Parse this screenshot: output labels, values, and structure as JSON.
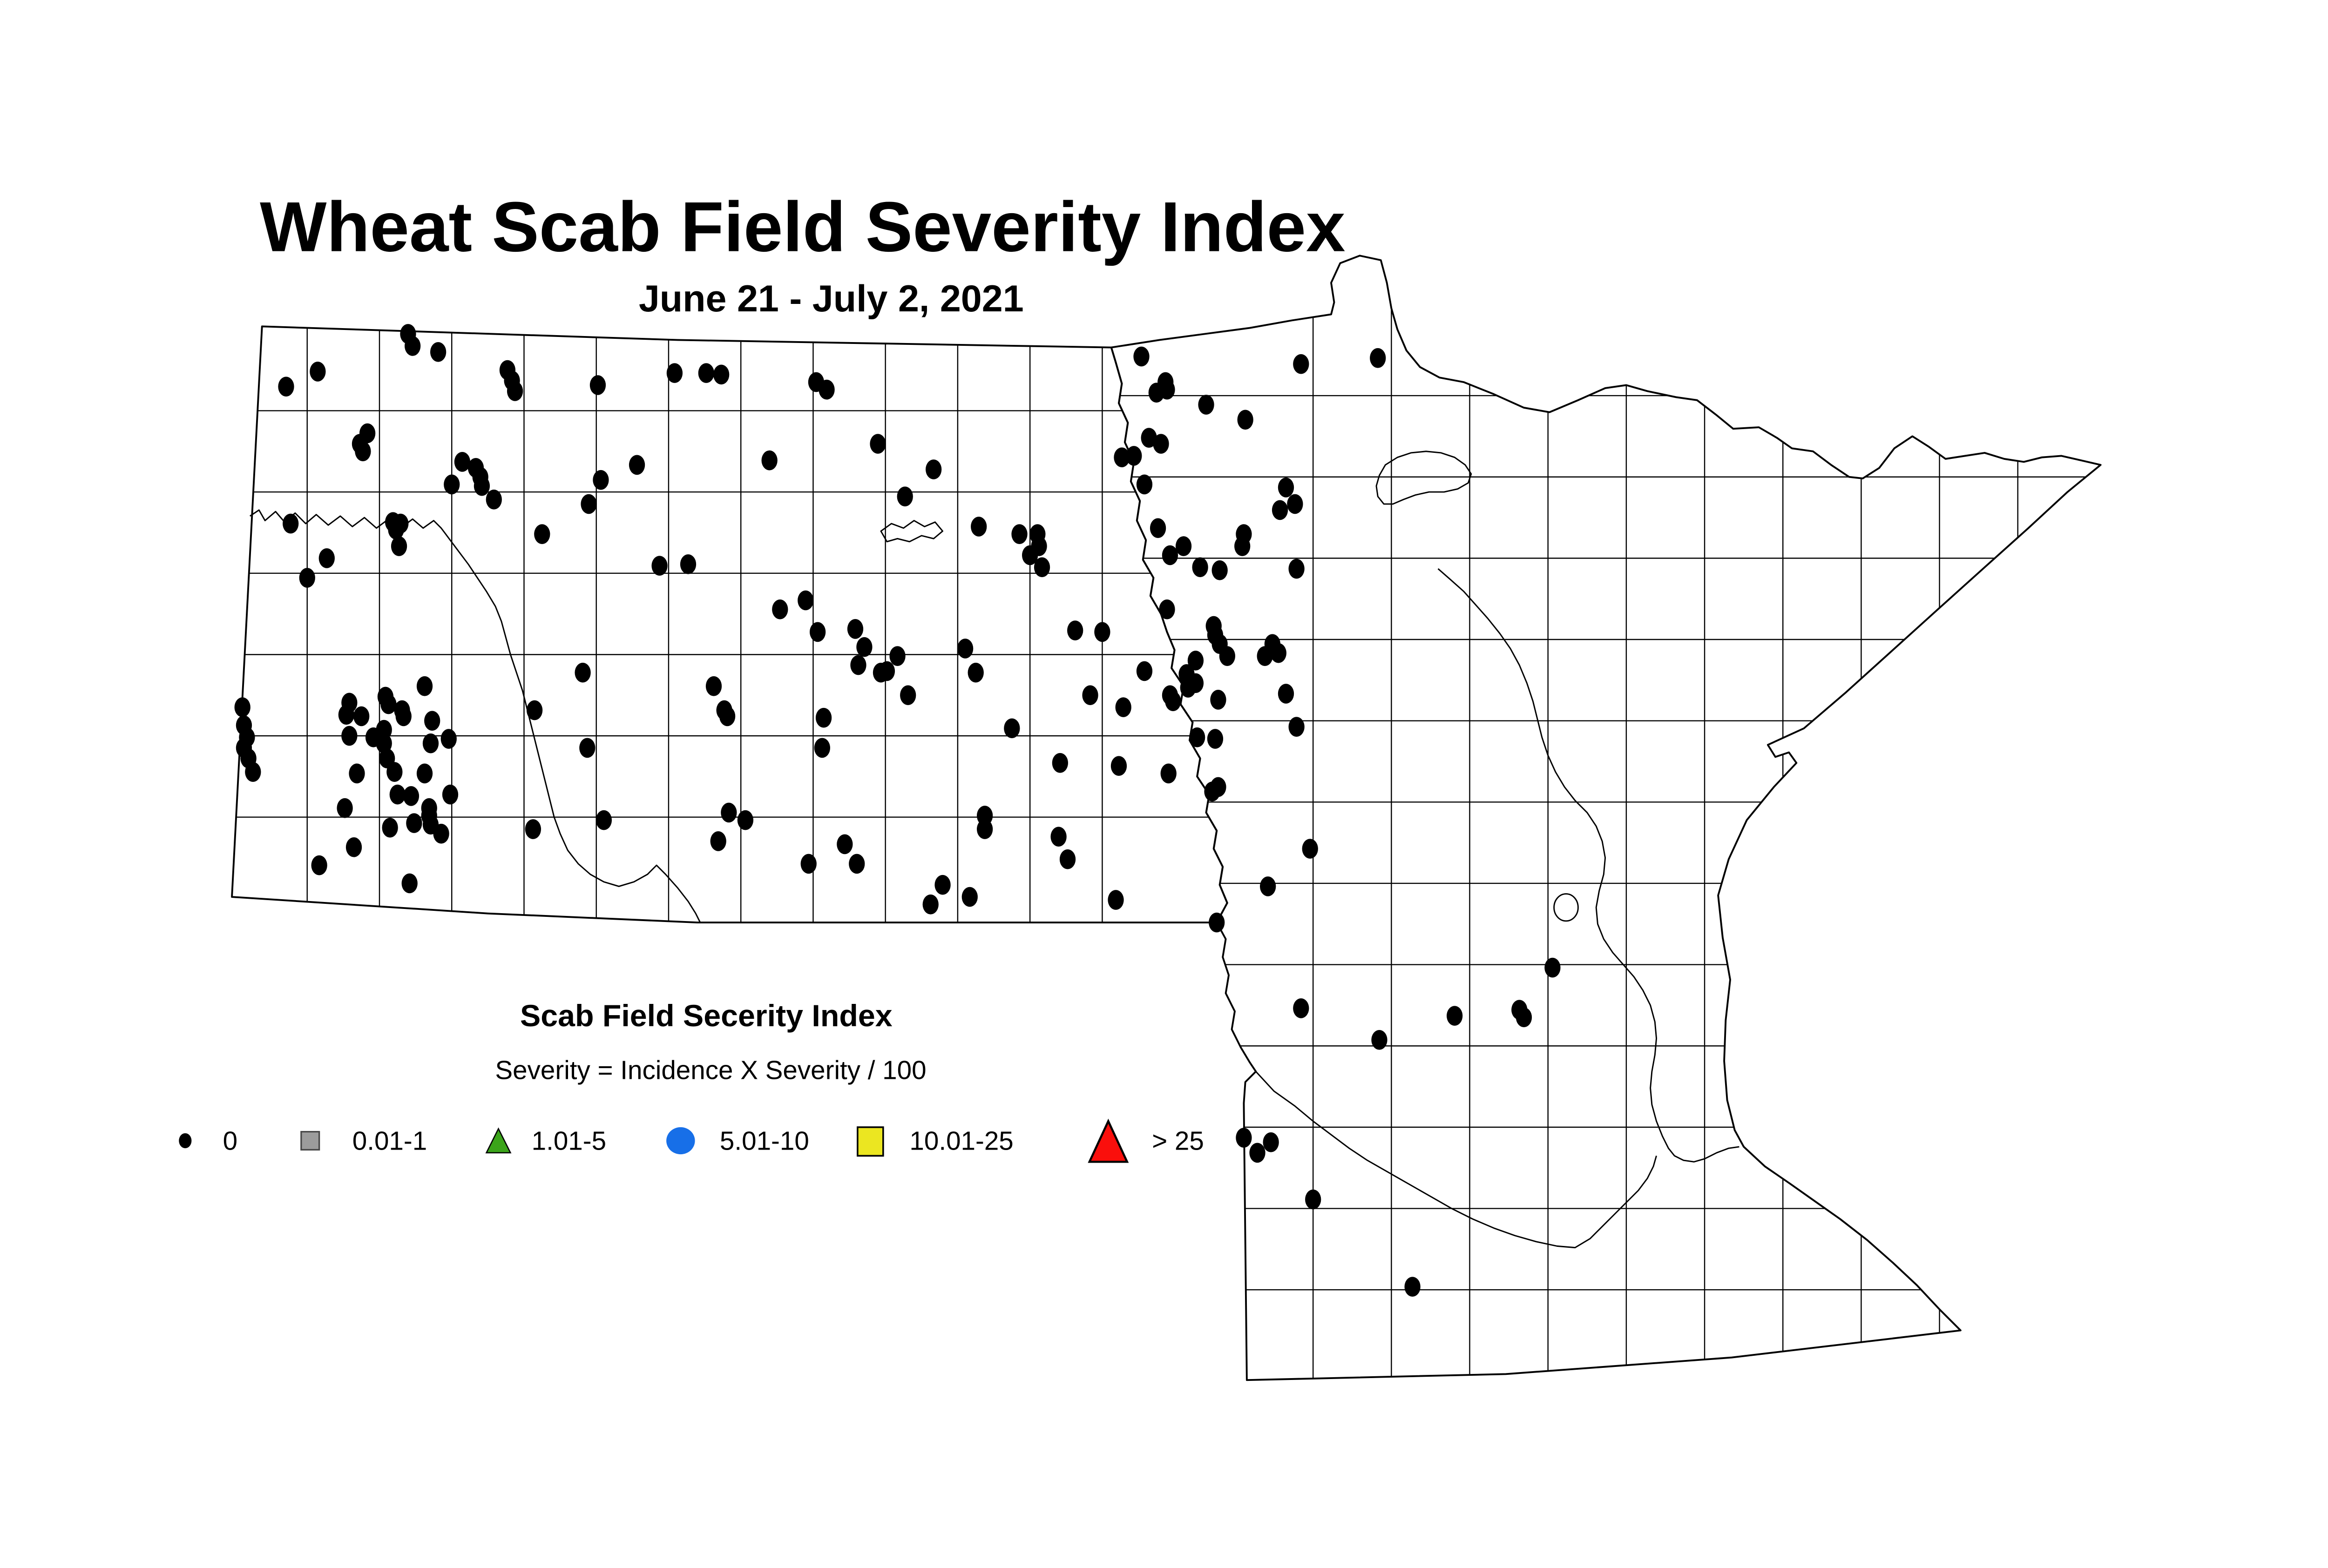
{
  "title": "Wheat Scab Field Severity Index",
  "subtitle": "June 21 - July 2, 2021",
  "legend": {
    "title": "Scab Field Secerity Index",
    "formula": "Severity = Incidence X Severity / 100",
    "items": [
      {
        "label": "0",
        "shape": "dot",
        "color": "#000000",
        "stroke": "#000000"
      },
      {
        "label": "0.01-1",
        "shape": "square",
        "color": "#9C9C9C",
        "stroke": "#474747"
      },
      {
        "label": "1.01-5",
        "shape": "triangle",
        "color": "#3BA41A",
        "stroke": "#000000"
      },
      {
        "label": "5.01-10",
        "shape": "circle",
        "color": "#176FE8",
        "stroke": "#176FE8"
      },
      {
        "label": "10.01-25",
        "shape": "square-large",
        "color": "#EBE621",
        "stroke": "#000000"
      },
      {
        "label": "> 25",
        "shape": "triangle-large",
        "color": "#FA0F0C",
        "stroke": "#000000"
      }
    ]
  },
  "chart_data": {
    "type": "scatter",
    "note": "Survey field locations plotted over North Dakota and Minnesota counties; every plotted site is the black-dot class (severity index 0). Coordinates are figure pixel positions in a 1546x816 canvas.",
    "point_class_label": "0",
    "point_color": "#000000",
    "points": [
      [
        271,
        109
      ],
      [
        274,
        117
      ],
      [
        291,
        121
      ],
      [
        211,
        134
      ],
      [
        190,
        144
      ],
      [
        337,
        133
      ],
      [
        340,
        140
      ],
      [
        342,
        147
      ],
      [
        397,
        143
      ],
      [
        448,
        135
      ],
      [
        469,
        135
      ],
      [
        479,
        136
      ],
      [
        542,
        141
      ],
      [
        549,
        146
      ],
      [
        583,
        182
      ],
      [
        244,
        175
      ],
      [
        239,
        182
      ],
      [
        241,
        187
      ],
      [
        307,
        194
      ],
      [
        316,
        198
      ],
      [
        319,
        204
      ],
      [
        320,
        210
      ],
      [
        300,
        209
      ],
      [
        328,
        219
      ],
      [
        423,
        196
      ],
      [
        399,
        206
      ],
      [
        391,
        222
      ],
      [
        511,
        193
      ],
      [
        620,
        199
      ],
      [
        601,
        217
      ],
      [
        650,
        237
      ],
      [
        677,
        242
      ],
      [
        689,
        242
      ],
      [
        690,
        250
      ],
      [
        684,
        256
      ],
      [
        692,
        264
      ],
      [
        758,
        124
      ],
      [
        774,
        141
      ],
      [
        775,
        146
      ],
      [
        768,
        148
      ],
      [
        801,
        156
      ],
      [
        827,
        166
      ],
      [
        763,
        178
      ],
      [
        771,
        182
      ],
      [
        745,
        191
      ],
      [
        753,
        190
      ],
      [
        760,
        209
      ],
      [
        864,
        129
      ],
      [
        915,
        125
      ],
      [
        854,
        211
      ],
      [
        860,
        222
      ],
      [
        850,
        226
      ],
      [
        193,
        235
      ],
      [
        261,
        234
      ],
      [
        266,
        235
      ],
      [
        263,
        239
      ],
      [
        265,
        250
      ],
      [
        217,
        258
      ],
      [
        204,
        271
      ],
      [
        360,
        242
      ],
      [
        438,
        263
      ],
      [
        457,
        262
      ],
      [
        769,
        238
      ],
      [
        777,
        256
      ],
      [
        786,
        250
      ],
      [
        797,
        264
      ],
      [
        810,
        266
      ],
      [
        826,
        242
      ],
      [
        825,
        250
      ],
      [
        861,
        265
      ],
      [
        535,
        286
      ],
      [
        518,
        292
      ],
      [
        543,
        307
      ],
      [
        568,
        305
      ],
      [
        574,
        317
      ],
      [
        570,
        329
      ],
      [
        641,
        318
      ],
      [
        596,
        323
      ],
      [
        589,
        333
      ],
      [
        585,
        334
      ],
      [
        648,
        334
      ],
      [
        603,
        349
      ],
      [
        714,
        306
      ],
      [
        732,
        307
      ],
      [
        775,
        292
      ],
      [
        806,
        303
      ],
      [
        807,
        309
      ],
      [
        810,
        315
      ],
      [
        815,
        323
      ],
      [
        794,
        326
      ],
      [
        840,
        323
      ],
      [
        845,
        315
      ],
      [
        849,
        321
      ],
      [
        387,
        334
      ],
      [
        282,
        343
      ],
      [
        232,
        354
      ],
      [
        230,
        362
      ],
      [
        240,
        363
      ],
      [
        256,
        350
      ],
      [
        258,
        355
      ],
      [
        267,
        359
      ],
      [
        268,
        363
      ],
      [
        287,
        366
      ],
      [
        355,
        359
      ],
      [
        474,
        343
      ],
      [
        481,
        359
      ],
      [
        483,
        363
      ],
      [
        547,
        364
      ],
      [
        760,
        333
      ],
      [
        788,
        335
      ],
      [
        794,
        341
      ],
      [
        789,
        344
      ],
      [
        777,
        349
      ],
      [
        779,
        353
      ],
      [
        724,
        349
      ],
      [
        746,
        357
      ],
      [
        809,
        352
      ],
      [
        854,
        348
      ],
      [
        161,
        357
      ],
      [
        162,
        369
      ],
      [
        164,
        377
      ],
      [
        162,
        384
      ],
      [
        165,
        391
      ],
      [
        168,
        400
      ],
      [
        232,
        376
      ],
      [
        248,
        377
      ],
      [
        255,
        372
      ],
      [
        255,
        381
      ],
      [
        286,
        381
      ],
      [
        298,
        378
      ],
      [
        257,
        391
      ],
      [
        237,
        401
      ],
      [
        262,
        400
      ],
      [
        282,
        401
      ],
      [
        390,
        384
      ],
      [
        546,
        384
      ],
      [
        672,
        371
      ],
      [
        795,
        377
      ],
      [
        807,
        378
      ],
      [
        861,
        370
      ],
      [
        264,
        415
      ],
      [
        273,
        416
      ],
      [
        299,
        415
      ],
      [
        229,
        424
      ],
      [
        285,
        424
      ],
      [
        285,
        429
      ],
      [
        275,
        434
      ],
      [
        286,
        435
      ],
      [
        259,
        437
      ],
      [
        293,
        441
      ],
      [
        235,
        450
      ],
      [
        212,
        462
      ],
      [
        272,
        474
      ],
      [
        354,
        438
      ],
      [
        401,
        432
      ],
      [
        484,
        427
      ],
      [
        495,
        432
      ],
      [
        477,
        446
      ],
      [
        561,
        448
      ],
      [
        537,
        461
      ],
      [
        569,
        461
      ],
      [
        704,
        394
      ],
      [
        743,
        396
      ],
      [
        776,
        401
      ],
      [
        805,
        413
      ],
      [
        809,
        410
      ],
      [
        654,
        429
      ],
      [
        654,
        438
      ],
      [
        703,
        443
      ],
      [
        709,
        458
      ],
      [
        626,
        475
      ],
      [
        644,
        483
      ],
      [
        618,
        488
      ],
      [
        741,
        485
      ],
      [
        808,
        500
      ],
      [
        870,
        451
      ],
      [
        842,
        476
      ],
      [
        864,
        557
      ],
      [
        966,
        562
      ],
      [
        1009,
        558
      ],
      [
        1012,
        563
      ],
      [
        916,
        578
      ],
      [
        1031,
        530
      ],
      [
        826,
        643
      ],
      [
        844,
        646
      ],
      [
        835,
        653
      ],
      [
        872,
        684
      ],
      [
        938,
        742
      ]
    ]
  }
}
